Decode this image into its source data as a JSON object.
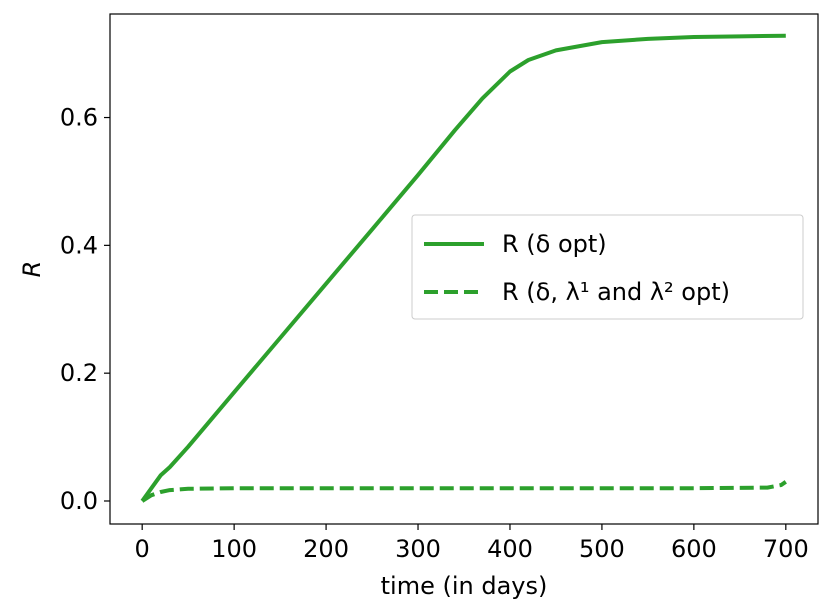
{
  "chart_data": {
    "type": "line",
    "xlabel": "time (in days)",
    "ylabel": "R",
    "xlim": [
      -35,
      735
    ],
    "ylim": [
      -0.036,
      0.762
    ],
    "xticks": [
      0,
      100,
      200,
      300,
      400,
      500,
      600,
      700
    ],
    "xtick_labels": [
      "0",
      "100",
      "200",
      "300",
      "400",
      "500",
      "600",
      "700"
    ],
    "yticks": [
      0.0,
      0.2,
      0.4,
      0.6
    ],
    "ytick_labels": [
      "0.0",
      "0.2",
      "0.4",
      "0.6"
    ],
    "grid": false,
    "legend_position": "center-right",
    "color": "#2ca02c",
    "series": [
      {
        "name": "R (δ opt)",
        "style": "solid",
        "x": [
          0,
          10,
          20,
          30,
          50,
          100,
          150,
          200,
          250,
          300,
          340,
          370,
          400,
          420,
          450,
          500,
          550,
          600,
          650,
          700
        ],
        "y": [
          0.0,
          0.02,
          0.04,
          0.053,
          0.085,
          0.17,
          0.255,
          0.34,
          0.425,
          0.51,
          0.58,
          0.63,
          0.672,
          0.69,
          0.705,
          0.718,
          0.723,
          0.726,
          0.727,
          0.728
        ]
      },
      {
        "name": "R (δ, λ¹ and λ² opt)",
        "style": "dashed",
        "x": [
          0,
          10,
          20,
          30,
          50,
          100,
          200,
          300,
          400,
          500,
          600,
          680,
          695,
          700
        ],
        "y": [
          0.0,
          0.009,
          0.014,
          0.017,
          0.019,
          0.02,
          0.02,
          0.02,
          0.02,
          0.02,
          0.02,
          0.021,
          0.025,
          0.03
        ]
      }
    ]
  }
}
